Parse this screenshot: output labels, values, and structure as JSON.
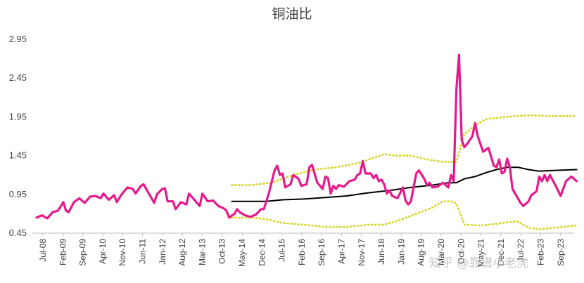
{
  "chart_data": {
    "type": "line",
    "title": "铜油比",
    "xlabel": "",
    "ylabel": "",
    "ylim": [
      0.45,
      2.95
    ],
    "yticks": [
      "0.45",
      "0.95",
      "1.45",
      "1.95",
      "2.45",
      "2.95"
    ],
    "xticks": [
      "Jul-08",
      "Feb-09",
      "Sep-09",
      "Apr-10",
      "Nov-10",
      "Jun-11",
      "Jan-12",
      "Aug-12",
      "Mar-13",
      "Oct-13",
      "May-14",
      "Dec-14",
      "Jul-15",
      "Feb-16",
      "Sep-16",
      "Apr-17",
      "Nov-17",
      "Jun-18",
      "Jan-19",
      "Aug-19",
      "Mar-20",
      "Oct-20",
      "May-21",
      "Dec-21",
      "Jul-22",
      "Feb-23",
      "Sep-23"
    ],
    "grid": false,
    "legend": "none",
    "series": [
      {
        "role": "ratio",
        "color": "#e6198c",
        "style": "solid",
        "points": [
          [
            0,
            0.65
          ],
          [
            2,
            0.68
          ],
          [
            4,
            0.64
          ],
          [
            6,
            0.72
          ],
          [
            8,
            0.74
          ],
          [
            10,
            0.85
          ],
          [
            11,
            0.74
          ],
          [
            12,
            0.72
          ],
          [
            14,
            0.85
          ],
          [
            16,
            0.9
          ],
          [
            18,
            0.84
          ],
          [
            20,
            0.92
          ],
          [
            22,
            0.93
          ],
          [
            24,
            0.9
          ],
          [
            25,
            0.96
          ],
          [
            27,
            0.88
          ],
          [
            29,
            0.94
          ],
          [
            30,
            0.85
          ],
          [
            32,
            0.96
          ],
          [
            34,
            1.04
          ],
          [
            36,
            1.02
          ],
          [
            37,
            0.96
          ],
          [
            39,
            1.06
          ],
          [
            40,
            1.08
          ],
          [
            42,
            0.96
          ],
          [
            44,
            0.84
          ],
          [
            45,
            0.95
          ],
          [
            47,
            1.02
          ],
          [
            48,
            1.03
          ],
          [
            49,
            0.86
          ],
          [
            51,
            0.86
          ],
          [
            52,
            0.76
          ],
          [
            54,
            0.85
          ],
          [
            56,
            0.82
          ],
          [
            57,
            0.96
          ],
          [
            59,
            0.88
          ],
          [
            61,
            0.8
          ],
          [
            62,
            0.96
          ],
          [
            64,
            0.86
          ],
          [
            66,
            0.87
          ],
          [
            68,
            0.8
          ],
          [
            70,
            0.77
          ],
          [
            71,
            0.74
          ],
          [
            72,
            0.65
          ],
          [
            74,
            0.7
          ],
          [
            75,
            0.76
          ],
          [
            76,
            0.72
          ],
          [
            78,
            0.68
          ],
          [
            80,
            0.66
          ],
          [
            82,
            0.69
          ],
          [
            84,
            0.76
          ],
          [
            85,
            0.76
          ],
          [
            87,
            0.98
          ],
          [
            88,
            1.12
          ],
          [
            89,
            1.26
          ],
          [
            90,
            1.32
          ],
          [
            91,
            1.2
          ],
          [
            92,
            1.22
          ],
          [
            93,
            1.04
          ],
          [
            95,
            1.08
          ],
          [
            96,
            1.2
          ],
          [
            98,
            1.15
          ],
          [
            99,
            1.06
          ],
          [
            101,
            1.08
          ],
          [
            102,
            1.3
          ],
          [
            103,
            1.33
          ],
          [
            105,
            1.1
          ],
          [
            107,
            1.02
          ],
          [
            108,
            1.18
          ],
          [
            109,
            1.16
          ],
          [
            110,
            0.96
          ],
          [
            111,
            1.06
          ],
          [
            112,
            1.02
          ],
          [
            113,
            1.07
          ],
          [
            115,
            1.05
          ],
          [
            117,
            1.12
          ],
          [
            119,
            1.14
          ],
          [
            120,
            1.2
          ],
          [
            121,
            1.22
          ],
          [
            122,
            1.38
          ],
          [
            123,
            1.22
          ],
          [
            125,
            1.22
          ],
          [
            126,
            1.16
          ],
          [
            127,
            1.2
          ],
          [
            128,
            1.12
          ],
          [
            129,
            1.14
          ],
          [
            130,
            1.08
          ],
          [
            131,
            0.96
          ],
          [
            132,
            1.0
          ],
          [
            133,
            0.93
          ],
          [
            135,
            0.9
          ],
          [
            137,
            1.04
          ],
          [
            138,
            0.87
          ],
          [
            139,
            0.82
          ],
          [
            140,
            0.86
          ],
          [
            142,
            1.22
          ],
          [
            143,
            1.26
          ],
          [
            145,
            1.15
          ],
          [
            146,
            1.07
          ],
          [
            147,
            1.1
          ],
          [
            148,
            1.04
          ],
          [
            150,
            1.05
          ],
          [
            152,
            1.1
          ],
          [
            154,
            1.04
          ],
          [
            155,
            1.2
          ],
          [
            156,
            1.12
          ],
          [
            157,
            2.3
          ],
          [
            158,
            2.75
          ],
          [
            159,
            1.65
          ],
          [
            160,
            1.56
          ],
          [
            161,
            1.6
          ],
          [
            163,
            1.7
          ],
          [
            164,
            1.87
          ],
          [
            165,
            1.7
          ],
          [
            167,
            1.5
          ],
          [
            169,
            1.55
          ],
          [
            171,
            1.32
          ],
          [
            172,
            1.3
          ],
          [
            173,
            1.4
          ],
          [
            174,
            1.22
          ],
          [
            175,
            1.24
          ],
          [
            176,
            1.41
          ],
          [
            177,
            1.3
          ],
          [
            178,
            1.02
          ],
          [
            179,
            0.96
          ],
          [
            181,
            0.84
          ],
          [
            182,
            0.8
          ],
          [
            184,
            0.86
          ],
          [
            185,
            0.94
          ],
          [
            187,
            0.99
          ],
          [
            188,
            1.18
          ],
          [
            189,
            1.12
          ],
          [
            190,
            1.2
          ],
          [
            191,
            1.12
          ],
          [
            192,
            1.2
          ],
          [
            194,
            1.07
          ],
          [
            196,
            0.93
          ],
          [
            198,
            1.12
          ],
          [
            200,
            1.18
          ],
          [
            202,
            1.12
          ]
        ]
      },
      {
        "role": "moving-average",
        "color": "#000000",
        "style": "solid",
        "points": [
          [
            73,
            0.86
          ],
          [
            80,
            0.86
          ],
          [
            86,
            0.86
          ],
          [
            92,
            0.88
          ],
          [
            100,
            0.89
          ],
          [
            108,
            0.91
          ],
          [
            116,
            0.93
          ],
          [
            124,
            0.97
          ],
          [
            132,
            1.0
          ],
          [
            140,
            1.04
          ],
          [
            148,
            1.07
          ],
          [
            154,
            1.1
          ],
          [
            157,
            1.1
          ],
          [
            160,
            1.15
          ],
          [
            164,
            1.18
          ],
          [
            168,
            1.23
          ],
          [
            172,
            1.27
          ],
          [
            176,
            1.3
          ],
          [
            180,
            1.3
          ],
          [
            184,
            1.27
          ],
          [
            188,
            1.25
          ],
          [
            194,
            1.26
          ],
          [
            202,
            1.27
          ]
        ]
      },
      {
        "role": "upper-band",
        "color": "#d4d420",
        "style": "dotted",
        "points": [
          [
            73,
            1.07
          ],
          [
            80,
            1.07
          ],
          [
            88,
            1.1
          ],
          [
            96,
            1.2
          ],
          [
            104,
            1.27
          ],
          [
            112,
            1.3
          ],
          [
            120,
            1.35
          ],
          [
            126,
            1.42
          ],
          [
            130,
            1.47
          ],
          [
            134,
            1.45
          ],
          [
            140,
            1.45
          ],
          [
            146,
            1.4
          ],
          [
            152,
            1.37
          ],
          [
            157,
            1.37
          ],
          [
            160,
            1.73
          ],
          [
            164,
            1.84
          ],
          [
            168,
            1.92
          ],
          [
            176,
            1.95
          ],
          [
            184,
            1.97
          ],
          [
            192,
            1.96
          ],
          [
            202,
            1.96
          ]
        ]
      },
      {
        "role": "lower-band",
        "color": "#d4d420",
        "style": "dotted",
        "points": [
          [
            73,
            0.65
          ],
          [
            80,
            0.65
          ],
          [
            86,
            0.63
          ],
          [
            92,
            0.58
          ],
          [
            100,
            0.56
          ],
          [
            108,
            0.53
          ],
          [
            116,
            0.53
          ],
          [
            124,
            0.56
          ],
          [
            130,
            0.56
          ],
          [
            136,
            0.62
          ],
          [
            142,
            0.7
          ],
          [
            148,
            0.78
          ],
          [
            152,
            0.86
          ],
          [
            155,
            0.86
          ],
          [
            157,
            0.83
          ],
          [
            160,
            0.56
          ],
          [
            166,
            0.55
          ],
          [
            172,
            0.57
          ],
          [
            176,
            0.59
          ],
          [
            180,
            0.6
          ],
          [
            184,
            0.52
          ],
          [
            188,
            0.5
          ],
          [
            194,
            0.52
          ],
          [
            202,
            0.55
          ]
        ]
      }
    ]
  },
  "watermark": "知乎 @靠谱小老虎"
}
